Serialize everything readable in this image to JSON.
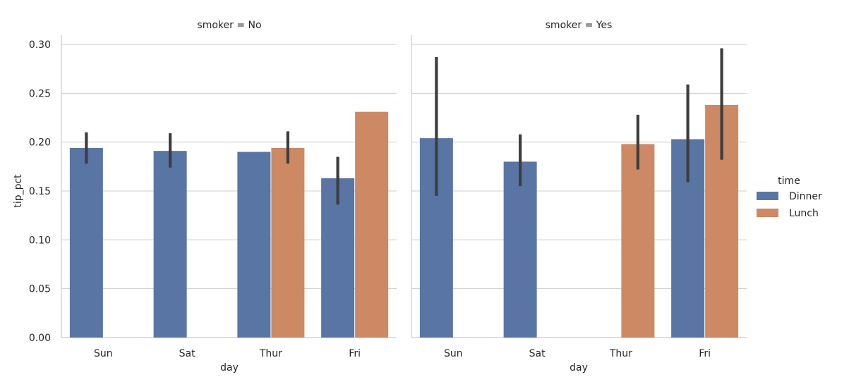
{
  "chart_data": {
    "type": "bar",
    "ylabel": "tip_pct",
    "xlabel": "day",
    "ylim": [
      0,
      0.31
    ],
    "yticks": [
      "0.00",
      "0.05",
      "0.10",
      "0.15",
      "0.20",
      "0.25",
      "0.30"
    ],
    "grid": "horizontal",
    "categories": [
      "Sun",
      "Sat",
      "Thur",
      "Fri"
    ],
    "legend": {
      "title": "time",
      "placement": "right",
      "entries": [
        {
          "name": "Dinner",
          "color": "#5975a4"
        },
        {
          "name": "Lunch",
          "color": "#cc8963"
        }
      ]
    },
    "facets": [
      {
        "title": "smoker = No",
        "series": [
          {
            "name": "Dinner",
            "values": [
              0.194,
              0.191,
              0.19,
              0.163
            ],
            "ci_low": [
              0.178,
              0.174,
              null,
              0.136
            ],
            "ci_high": [
              0.21,
              0.209,
              null,
              0.185
            ]
          },
          {
            "name": "Lunch",
            "values": [
              null,
              null,
              0.194,
              0.231
            ],
            "ci_low": [
              null,
              null,
              0.178,
              null
            ],
            "ci_high": [
              null,
              null,
              0.211,
              null
            ]
          }
        ]
      },
      {
        "title": "smoker = Yes",
        "series": [
          {
            "name": "Dinner",
            "values": [
              0.204,
              0.18,
              null,
              0.203
            ],
            "ci_low": [
              0.145,
              0.155,
              null,
              0.159
            ],
            "ci_high": [
              0.287,
              0.208,
              null,
              0.259
            ]
          },
          {
            "name": "Lunch",
            "values": [
              null,
              null,
              0.198,
              0.238
            ],
            "ci_low": [
              null,
              null,
              0.172,
              0.182
            ],
            "ci_high": [
              null,
              null,
              0.228,
              0.296
            ]
          }
        ]
      }
    ]
  }
}
